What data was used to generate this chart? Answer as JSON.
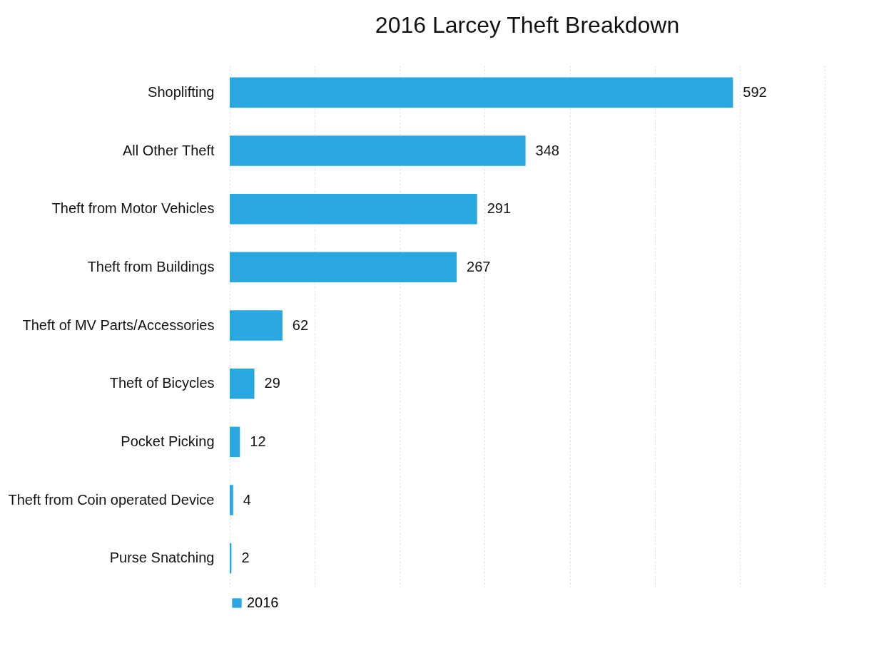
{
  "chart_data": {
    "type": "bar",
    "orientation": "horizontal",
    "title": "2016 Larcey Theft Breakdown",
    "categories": [
      "Shoplifting",
      "All Other Theft",
      "Theft from Motor Vehicles",
      "Theft from Buildings",
      "Theft of MV Parts/Accessories",
      "Theft of Bicycles",
      "Pocket Picking",
      "Theft from Coin operated Device",
      "Purse Snatching"
    ],
    "series": [
      {
        "name": "2016",
        "color": "#29a8e0",
        "values": [
          592,
          348,
          291,
          267,
          62,
          29,
          12,
          4,
          2
        ]
      }
    ],
    "xlim": [
      0,
      700
    ],
    "xticks": [
      {
        "value": 0,
        "label": null
      },
      {
        "value": 100,
        "label": null
      },
      {
        "value": 200,
        "label": null
      },
      {
        "value": 300,
        "label": null
      },
      {
        "value": 400,
        "label": null
      },
      {
        "value": 500,
        "label": null
      },
      {
        "value": 600,
        "label": null
      },
      {
        "value": 700,
        "label": null
      }
    ],
    "grid": "x",
    "tick_labels": "y",
    "data_labels": true,
    "legend": "bottom"
  }
}
